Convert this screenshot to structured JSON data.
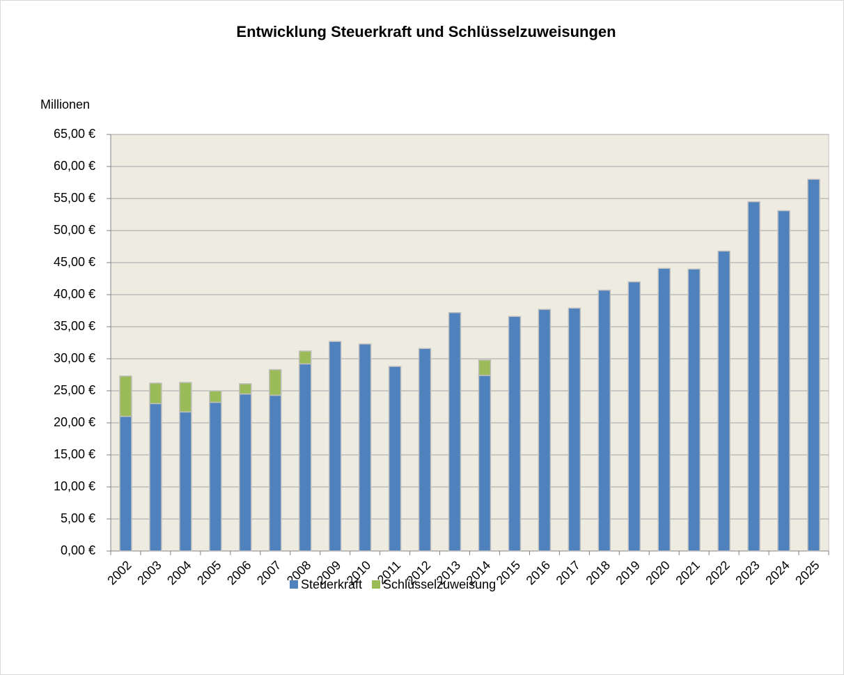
{
  "chart_data": {
    "type": "stacked_bar",
    "title": "Entwicklung Steuerkraft und Schlüsselzuweisungen",
    "y_label": "Millionen",
    "categories": [
      "2002",
      "2003",
      "2004",
      "2005",
      "2006",
      "2007",
      "2008",
      "2009",
      "2010",
      "2011",
      "2012",
      "2013",
      "2014",
      "2015",
      "2016",
      "2017",
      "2018",
      "2019",
      "2020",
      "2021",
      "2022",
      "2023",
      "2024",
      "2025"
    ],
    "series": [
      {
        "name": "Steuerkraft",
        "color": "#4f81bd",
        "values": [
          21.0,
          23.0,
          21.7,
          23.2,
          24.5,
          24.3,
          29.2,
          32.7,
          32.3,
          28.8,
          31.6,
          37.2,
          27.4,
          36.6,
          37.7,
          37.9,
          40.7,
          42.0,
          44.1,
          44.0,
          46.8,
          54.5,
          53.1,
          58.0
        ]
      },
      {
        "name": "Schlüsselzuweisung",
        "color": "#9bbb59",
        "values": [
          6.3,
          3.2,
          4.6,
          1.8,
          1.6,
          4.0,
          2.0,
          0,
          0,
          0,
          0,
          0,
          2.4,
          0,
          0,
          0,
          0,
          0,
          0,
          0,
          0,
          0,
          0,
          0
        ]
      }
    ],
    "ylim": [
      0,
      65
    ],
    "yticks": [
      {
        "value": 0,
        "label": "0,00 €"
      },
      {
        "value": 5,
        "label": "5,00 €"
      },
      {
        "value": 10,
        "label": "10,00 €"
      },
      {
        "value": 15,
        "label": "15,00 €"
      },
      {
        "value": 20,
        "label": "20,00 €"
      },
      {
        "value": 25,
        "label": "25,00 €"
      },
      {
        "value": 30,
        "label": "30,00 €"
      },
      {
        "value": 35,
        "label": "35,00 €"
      },
      {
        "value": 40,
        "label": "40,00 €"
      },
      {
        "value": 45,
        "label": "45,00 €"
      },
      {
        "value": 50,
        "label": "50,00 €"
      },
      {
        "value": 55,
        "label": "55,00 €"
      },
      {
        "value": 60,
        "label": "60,00 €"
      },
      {
        "value": 65,
        "label": "65,00 €"
      }
    ],
    "grid": true,
    "legend": "bottom"
  }
}
